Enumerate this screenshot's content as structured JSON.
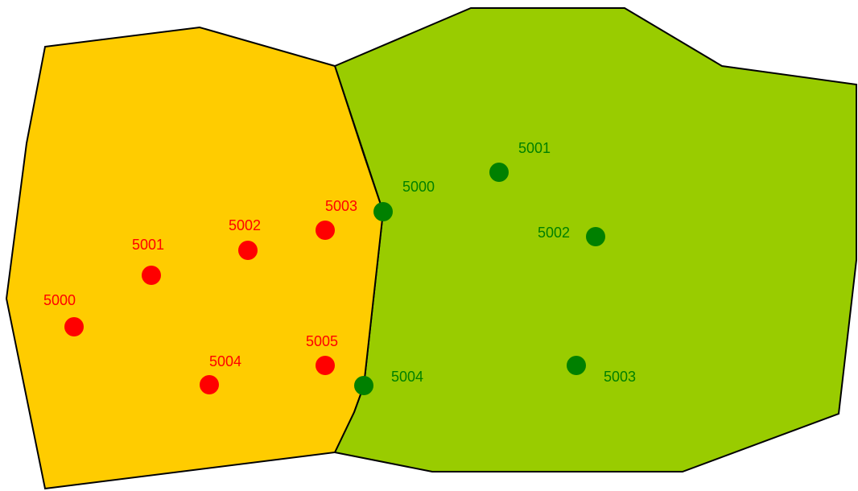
{
  "regions": [
    {
      "id": "left",
      "fill": "#ffcc00",
      "points": [
        {
          "label": "5000",
          "color": "#ff0000"
        },
        {
          "label": "5001",
          "color": "#ff0000"
        },
        {
          "label": "5002",
          "color": "#ff0000"
        },
        {
          "label": "5003",
          "color": "#ff0000"
        },
        {
          "label": "5004",
          "color": "#ff0000"
        },
        {
          "label": "5005",
          "color": "#ff0000"
        }
      ]
    },
    {
      "id": "right",
      "fill": "#99cc00",
      "points": [
        {
          "label": "5000",
          "color": "#008000"
        },
        {
          "label": "5001",
          "color": "#008000"
        },
        {
          "label": "5002",
          "color": "#008000"
        },
        {
          "label": "5003",
          "color": "#008000"
        },
        {
          "label": "5004",
          "color": "#008000"
        }
      ]
    }
  ]
}
